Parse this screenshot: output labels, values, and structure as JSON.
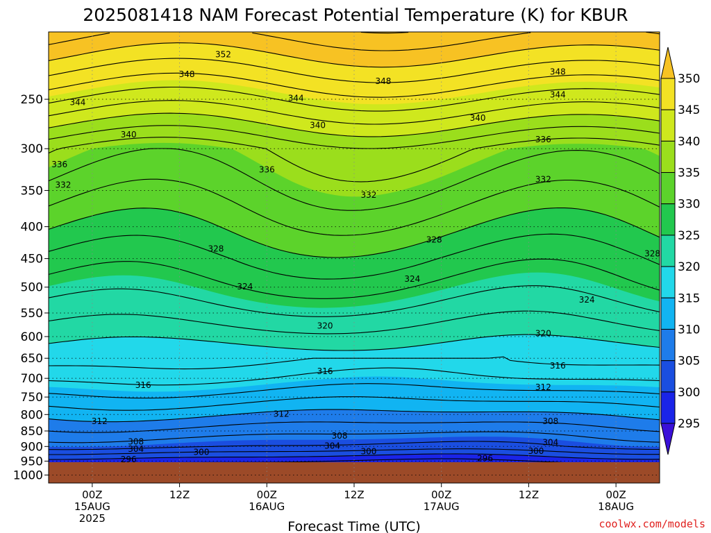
{
  "chart_data": {
    "type": "heatmap",
    "title": "2025081418 NAM Forecast Potential Temperature (K) for KBUR",
    "xlabel": "Forecast Time (UTC)",
    "ylabel": "",
    "y_ticks": [
      "250",
      "300",
      "350",
      "400",
      "450",
      "500",
      "550",
      "600",
      "650",
      "700",
      "750",
      "800",
      "850",
      "900",
      "950",
      "1000"
    ],
    "x_ticks": [
      {
        "hour": 0,
        "line1": "00Z",
        "line2": "15AUG",
        "line3": "2025"
      },
      {
        "hour": 12,
        "line1": "12Z",
        "line2": "",
        "line3": ""
      },
      {
        "hour": 24,
        "line1": "00Z",
        "line2": "16AUG",
        "line3": ""
      },
      {
        "hour": 36,
        "line1": "12Z",
        "line2": "",
        "line3": ""
      },
      {
        "hour": 48,
        "line1": "00Z",
        "line2": "17AUG",
        "line3": ""
      },
      {
        "hour": 60,
        "line1": "12Z",
        "line2": "",
        "line3": ""
      },
      {
        "hour": 72,
        "line1": "00Z",
        "line2": "18AUG",
        "line3": ""
      }
    ],
    "x_range_hours": [
      -6,
      78
    ],
    "y_range_hpa": [
      195,
      1030
    ],
    "surface_pressure_hpa": 970,
    "grid": "dotted",
    "colorbar": {
      "labels": [
        "350",
        "345",
        "340",
        "335",
        "330",
        "325",
        "320",
        "315",
        "310",
        "305",
        "300",
        "295"
      ],
      "colors": [
        "#f7c223",
        "#f3e224",
        "#cfe81d",
        "#9bde1c",
        "#5cd32b",
        "#22c84e",
        "#22d8a4",
        "#22d8ea",
        "#11b4f2",
        "#1e7cea",
        "#1a4ee0",
        "#1a24e8",
        "#3a10d8"
      ]
    },
    "contour_levels": [
      {
        "value": 352,
        "label": "352",
        "labels_at": [
          {
            "hour": 18,
            "p": 212
          }
        ]
      },
      {
        "value": 348,
        "label": "348",
        "labels_at": [
          {
            "hour": 13,
            "p": 228
          },
          {
            "hour": 40,
            "p": 234
          },
          {
            "hour": 64,
            "p": 226
          }
        ]
      },
      {
        "value": 344,
        "label": "344",
        "labels_at": [
          {
            "hour": -2,
            "p": 253
          },
          {
            "hour": 28,
            "p": 249
          },
          {
            "hour": 64,
            "p": 246
          }
        ]
      },
      {
        "value": 340,
        "label": "340",
        "labels_at": [
          {
            "hour": 5,
            "p": 285
          },
          {
            "hour": 31,
            "p": 275
          },
          {
            "hour": 53,
            "p": 268
          }
        ]
      },
      {
        "value": 336,
        "label": "336",
        "labels_at": [
          {
            "hour": -4.5,
            "p": 318
          },
          {
            "hour": 24,
            "p": 324
          },
          {
            "hour": 62,
            "p": 290
          }
        ]
      },
      {
        "value": 332,
        "label": "332",
        "labels_at": [
          {
            "hour": -4,
            "p": 343
          },
          {
            "hour": 38,
            "p": 356
          },
          {
            "hour": 62,
            "p": 336
          }
        ]
      },
      {
        "value": 328,
        "label": "328",
        "labels_at": [
          {
            "hour": 17,
            "p": 434
          },
          {
            "hour": 47,
            "p": 420
          },
          {
            "hour": 77,
            "p": 442
          }
        ]
      },
      {
        "value": 324,
        "label": "324",
        "labels_at": [
          {
            "hour": 21,
            "p": 499
          },
          {
            "hour": 44,
            "p": 485
          },
          {
            "hour": 68,
            "p": 524
          }
        ]
      },
      {
        "value": 320,
        "label": "320",
        "labels_at": [
          {
            "hour": 32,
            "p": 577
          },
          {
            "hour": 62,
            "p": 593
          }
        ]
      },
      {
        "value": 316,
        "label": "316",
        "labels_at": [
          {
            "hour": 7,
            "p": 718
          },
          {
            "hour": 32,
            "p": 682
          },
          {
            "hour": 64,
            "p": 668
          }
        ]
      },
      {
        "value": 312,
        "label": "312",
        "labels_at": [
          {
            "hour": 1,
            "p": 820
          },
          {
            "hour": 26,
            "p": 798
          },
          {
            "hour": 62,
            "p": 723
          }
        ]
      },
      {
        "value": 308,
        "label": "308",
        "labels_at": [
          {
            "hour": 6,
            "p": 885
          },
          {
            "hour": 34,
            "p": 865
          },
          {
            "hour": 63,
            "p": 820
          }
        ]
      },
      {
        "value": 304,
        "label": "304",
        "labels_at": [
          {
            "hour": 6,
            "p": 909
          },
          {
            "hour": 33,
            "p": 898
          },
          {
            "hour": 63,
            "p": 887
          }
        ]
      },
      {
        "value": 300,
        "label": "300",
        "labels_at": [
          {
            "hour": 15,
            "p": 919
          },
          {
            "hour": 38,
            "p": 917
          },
          {
            "hour": 61,
            "p": 916
          }
        ]
      },
      {
        "value": 296,
        "label": "296",
        "labels_at": [
          {
            "hour": 5,
            "p": 944
          },
          {
            "hour": 54,
            "p": 941
          }
        ]
      }
    ]
  },
  "credit": "coolwx.com/models"
}
